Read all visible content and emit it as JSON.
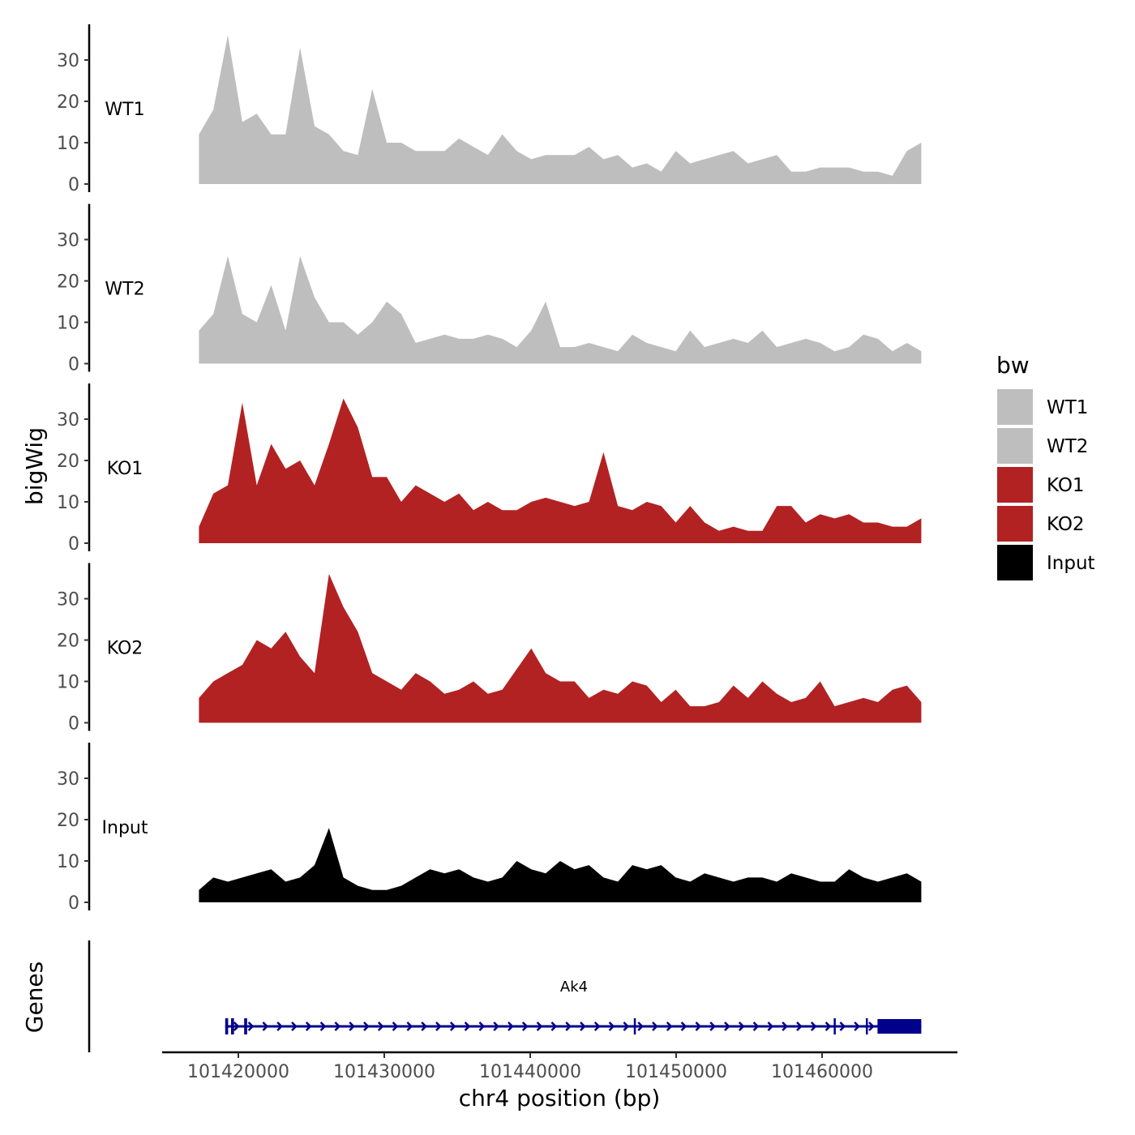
{
  "chart_data": {
    "type": "area",
    "xlabel": "chr4 position (bp)",
    "ylabel": "bigWig",
    "gene_panel_label": "Genes",
    "xlim": [
      101417300,
      101466800
    ],
    "ylim": [
      0,
      38
    ],
    "x_ticks": [
      101420000,
      101430000,
      101440000,
      101450000,
      101460000
    ],
    "x_tick_labels": [
      "101420000",
      "101430000",
      "101440000",
      "101450000",
      "101460000"
    ],
    "y_ticks": [
      0,
      10,
      20,
      30
    ],
    "y_tick_labels": [
      "0",
      "10",
      "20",
      "30"
    ],
    "bin_start": 101417300,
    "bin_step": 990,
    "series": [
      {
        "name": "WT1",
        "color": "#bebebe",
        "values": [
          12,
          18,
          36,
          15,
          17,
          12,
          12,
          33,
          14,
          12,
          8,
          7,
          23,
          10,
          10,
          8,
          8,
          8,
          11,
          9,
          7,
          12,
          8,
          6,
          7,
          7,
          7,
          9,
          6,
          7,
          4,
          5,
          3,
          8,
          5,
          6,
          7,
          8,
          5,
          6,
          7,
          3,
          3,
          4,
          4,
          4,
          3,
          3,
          2,
          8,
          10
        ]
      },
      {
        "name": "WT2",
        "color": "#bebebe",
        "values": [
          8,
          12,
          26,
          12,
          10,
          19,
          8,
          26,
          16,
          10,
          10,
          7,
          10,
          15,
          12,
          5,
          6,
          7,
          6,
          6,
          7,
          6,
          4,
          8,
          15,
          4,
          4,
          5,
          4,
          3,
          7,
          5,
          4,
          3,
          8,
          4,
          5,
          6,
          5,
          8,
          4,
          5,
          6,
          5,
          3,
          4,
          7,
          6,
          3,
          5,
          3
        ]
      },
      {
        "name": "KO1",
        "color": "#b22222",
        "values": [
          4,
          12,
          14,
          34,
          14,
          24,
          18,
          20,
          14,
          24,
          35,
          28,
          16,
          16,
          10,
          14,
          12,
          10,
          12,
          8,
          10,
          8,
          8,
          10,
          11,
          10,
          9,
          10,
          22,
          9,
          8,
          10,
          9,
          5,
          9,
          5,
          3,
          4,
          3,
          3,
          9,
          9,
          5,
          7,
          6,
          7,
          5,
          5,
          4,
          4,
          6
        ]
      },
      {
        "name": "KO2",
        "color": "#b22222",
        "values": [
          6,
          10,
          12,
          14,
          20,
          18,
          22,
          16,
          12,
          36,
          28,
          22,
          12,
          10,
          8,
          12,
          10,
          7,
          8,
          10,
          7,
          8,
          13,
          18,
          12,
          10,
          10,
          6,
          8,
          7,
          10,
          9,
          5,
          8,
          4,
          4,
          5,
          9,
          6,
          10,
          7,
          5,
          6,
          10,
          4,
          5,
          6,
          5,
          8,
          9,
          5
        ]
      },
      {
        "name": "Input",
        "color": "#000000",
        "values": [
          3,
          6,
          5,
          6,
          7,
          8,
          5,
          6,
          9,
          18,
          6,
          4,
          3,
          3,
          4,
          6,
          8,
          7,
          8,
          6,
          5,
          6,
          10,
          8,
          7,
          10,
          8,
          9,
          6,
          5,
          9,
          8,
          9,
          6,
          5,
          7,
          6,
          5,
          6,
          6,
          5,
          7,
          6,
          5,
          5,
          8,
          6,
          5,
          6,
          7,
          5
        ]
      }
    ],
    "legend": {
      "title": "bw",
      "position": "right",
      "entries": [
        {
          "label": "WT1",
          "color": "#bebebe"
        },
        {
          "label": "WT2",
          "color": "#bebebe"
        },
        {
          "label": "KO1",
          "color": "#b22222"
        },
        {
          "label": "KO2",
          "color": "#b22222"
        },
        {
          "label": "Input",
          "color": "#000000"
        }
      ]
    },
    "gene": {
      "name": "Ak4",
      "color": "#00008b",
      "strand": "+",
      "start": 101419100,
      "end": 101466800,
      "exons": [
        [
          101419100,
          101419300
        ],
        [
          101419500,
          101419700
        ],
        [
          101420400,
          101420600
        ],
        [
          101447100,
          101447200
        ],
        [
          101460800,
          101460900
        ],
        [
          101463000,
          101463100
        ],
        [
          101463800,
          101466800
        ]
      ]
    }
  }
}
